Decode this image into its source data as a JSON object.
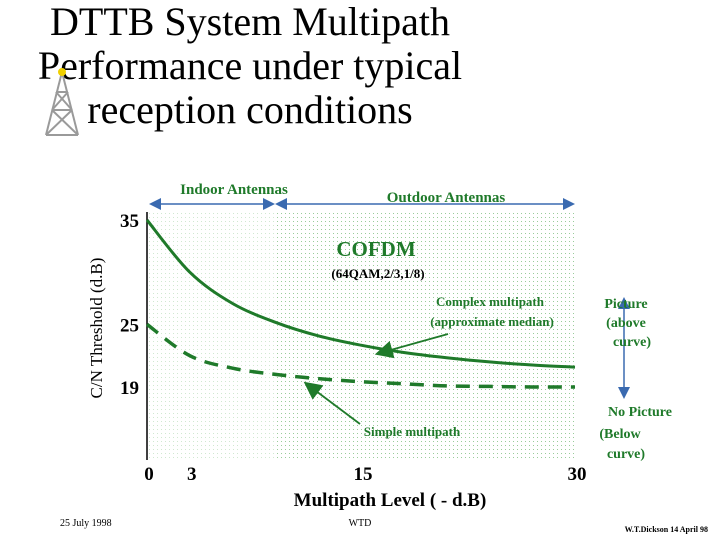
{
  "title_lines": [
    "DTTB System Multipath",
    "Performance under typical",
    "reception conditions"
  ],
  "footer": {
    "date": "25 July 1998",
    "org": "WTD",
    "author": "W.T.Dickson 14 April 98"
  },
  "colors": {
    "curve": "#1f7a2a",
    "arrow": "#3a6ab0",
    "label_green": "#1f7a2a",
    "dots": "#9acc9a"
  },
  "icons": [
    "antenna-tower-icon"
  ],
  "chart_data": {
    "type": "line",
    "xlabel": "Multipath Level ( - d.B)",
    "ylabel": "C/N Threshold (d.B)",
    "x_ticks": [
      0,
      3,
      15,
      30
    ],
    "y_ticks": [
      35,
      25,
      19
    ],
    "xlim": [
      0,
      30
    ],
    "ylim": [
      12,
      35
    ],
    "grid": "dotted background",
    "regions": [
      {
        "label": "Indoor Antennas",
        "x_range": [
          0,
          9
        ]
      },
      {
        "label": "Outdoor Antennas",
        "x_range": [
          9,
          30
        ]
      }
    ],
    "series": [
      {
        "label": "Complex multipath (approximate median)",
        "style": "solid",
        "x": [
          0,
          3,
          6,
          9,
          12,
          15,
          18,
          21,
          24,
          27,
          30
        ],
        "y": [
          35.0,
          30.0,
          27.0,
          25.2,
          23.9,
          23.0,
          22.3,
          21.8,
          21.4,
          21.1,
          20.9
        ]
      },
      {
        "label": "Simple multipath",
        "style": "dashed",
        "x": [
          0,
          3,
          6,
          9,
          12,
          15,
          18,
          21,
          24,
          27,
          30
        ],
        "y": [
          25.0,
          22.0,
          20.8,
          20.2,
          19.8,
          19.5,
          19.3,
          19.1,
          19.05,
          19.0,
          19.0
        ]
      }
    ],
    "annotations": {
      "cofdm": "COFDM",
      "cofdm_sub": "(64QAM,2/3,1/8)",
      "complex_line1": "Complex multipath",
      "complex_line2": "(approximate median)",
      "simple": "Simple multipath",
      "picture_lines": [
        "Picture",
        "(above",
        "curve)"
      ],
      "no_picture_lines": [
        "No Picture",
        "(Below",
        "curve)"
      ]
    }
  }
}
